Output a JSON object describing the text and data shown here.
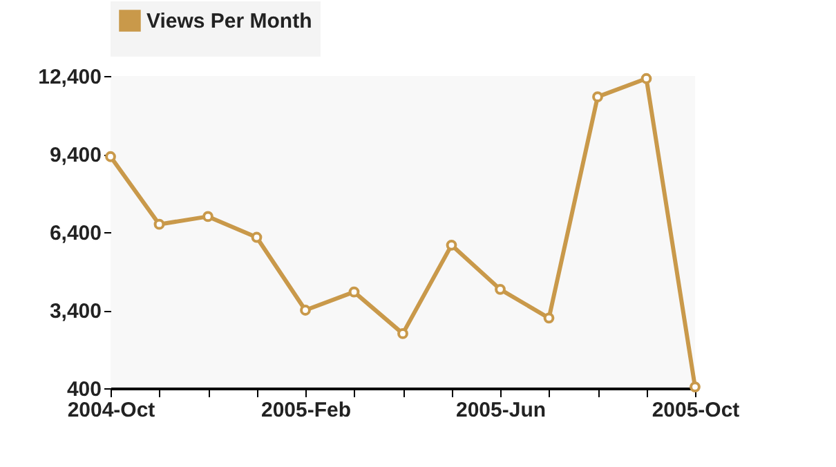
{
  "chart_data": {
    "type": "line",
    "categories": [
      "2004-Oct",
      null,
      null,
      null,
      "2005-Feb",
      null,
      null,
      null,
      "2005-Jun",
      null,
      null,
      null,
      "2005-Oct"
    ],
    "series": [
      {
        "name": "Views Per Month",
        "color": "#c9994a",
        "values": [
          9300,
          6700,
          7000,
          6200,
          3400,
          4100,
          2500,
          5900,
          4200,
          3100,
          11600,
          12300,
          450
        ]
      }
    ],
    "ylim": [
      400,
      12400
    ],
    "yticks": [
      400,
      {
        "value": 3400,
        "label": "3,400"
      },
      {
        "value": 6400,
        "label": "6,400"
      },
      {
        "value": 9400,
        "label": "9,400"
      },
      {
        "value": 12400,
        "label": "12,400"
      }
    ],
    "legend": "top",
    "marker": "circle",
    "line_style": "solid"
  }
}
